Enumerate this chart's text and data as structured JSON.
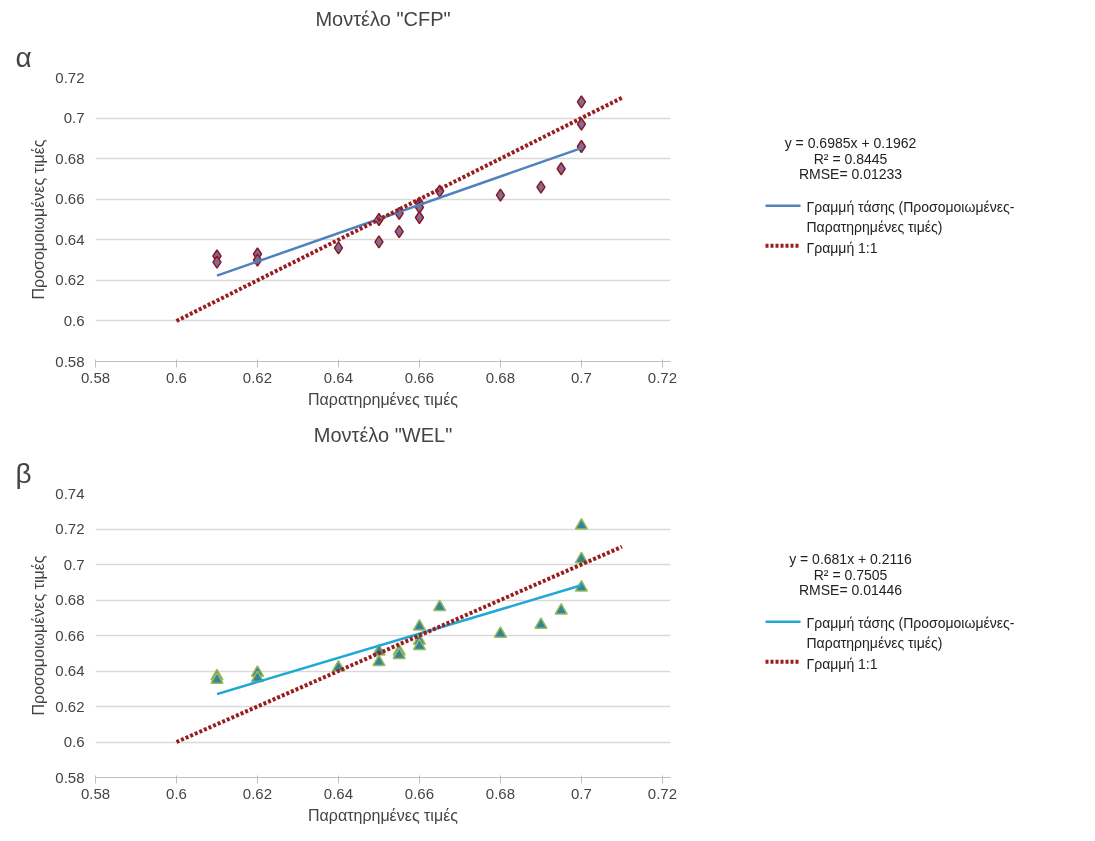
{
  "chart_data": [
    {
      "type": "scatter",
      "title": "Μοντέλο \"CFP\"",
      "xlabel": "Παρατηρημένες τιμές",
      "ylabel": "Προσομοιωμένες τιμές",
      "annotations": [
        "α",
        "y = 0.6985x + 0.1962",
        "R² = 0.8445",
        "RMSE= 0.01233"
      ],
      "xlim": [
        0.58,
        0.722
      ],
      "ylim": [
        0.58,
        0.72
      ],
      "xticks": [
        0.58,
        0.6,
        0.62,
        0.64,
        0.66,
        0.68,
        0.7,
        0.72
      ],
      "yticks": [
        0.58,
        0.6,
        0.62,
        0.64,
        0.66,
        0.68,
        0.7,
        0.72
      ],
      "grid": "y",
      "legend": "right",
      "series": [
        {
          "type": "scatter",
          "marker": "diamond",
          "color": "#7f6a9e",
          "x": [
            0.61,
            0.61,
            0.62,
            0.62,
            0.64,
            0.65,
            0.65,
            0.655,
            0.655,
            0.66,
            0.66,
            0.66,
            0.665,
            0.68,
            0.69,
            0.695,
            0.7,
            0.7,
            0.7
          ],
          "values": [
            0.632,
            0.629,
            0.633,
            0.63,
            0.636,
            0.65,
            0.639,
            0.653,
            0.644,
            0.658,
            0.656,
            0.651,
            0.664,
            0.662,
            0.666,
            0.675,
            0.708,
            0.697,
            0.686
          ]
        },
        {
          "type": "line",
          "name": "Γραμμή τάσης (Προσομοιωμένες-Παρατηρημένες τιμές)",
          "color": "#4f81bd",
          "line_style": "solid",
          "x": [
            0.61,
            0.7
          ],
          "values": [
            0.6223,
            0.6852
          ]
        },
        {
          "type": "line",
          "name": "Γραμμή 1:1",
          "color": "#9b1c1c",
          "line_style": "dotted",
          "x": [
            0.6,
            0.71
          ],
          "values": [
            0.6,
            0.71
          ]
        }
      ]
    },
    {
      "type": "scatter",
      "title": "Μοντέλο \"WEL\"",
      "xlabel": "Παρατηρημένες τιμές",
      "ylabel": "Προσομοιωμένες τιμές",
      "annotations": [
        "β",
        "y = 0.681x + 0.2116",
        "R² = 0.7505",
        "RMSE= 0.01446"
      ],
      "xlim": [
        0.58,
        0.722
      ],
      "ylim": [
        0.58,
        0.74
      ],
      "xticks": [
        0.58,
        0.6,
        0.62,
        0.64,
        0.66,
        0.68,
        0.7,
        0.72
      ],
      "yticks": [
        0.58,
        0.6,
        0.62,
        0.64,
        0.66,
        0.68,
        0.7,
        0.72,
        0.74
      ],
      "grid": "y",
      "legend": "right",
      "series": [
        {
          "type": "scatter",
          "marker": "triangle",
          "color": "#31849b",
          "x": [
            0.61,
            0.61,
            0.62,
            0.62,
            0.64,
            0.65,
            0.65,
            0.655,
            0.655,
            0.66,
            0.66,
            0.66,
            0.665,
            0.68,
            0.69,
            0.695,
            0.7,
            0.7,
            0.7
          ],
          "values": [
            0.637,
            0.635,
            0.639,
            0.636,
            0.642,
            0.651,
            0.645,
            0.651,
            0.649,
            0.665,
            0.657,
            0.654,
            0.676,
            0.661,
            0.666,
            0.674,
            0.722,
            0.703,
            0.687
          ]
        },
        {
          "type": "line",
          "name": "Γραμμή τάσης (Προσομοιωμένες-Παρατηρημένες τιμές)",
          "color": "#1fa7d6",
          "line_style": "solid",
          "x": [
            0.61,
            0.7
          ],
          "values": [
            0.627,
            0.6883
          ]
        },
        {
          "type": "line",
          "name": "Γραμμή 1:1",
          "color": "#9b1c1c",
          "line_style": "dotted",
          "x": [
            0.6,
            0.71
          ],
          "values": [
            0.6,
            0.71
          ]
        }
      ]
    }
  ]
}
